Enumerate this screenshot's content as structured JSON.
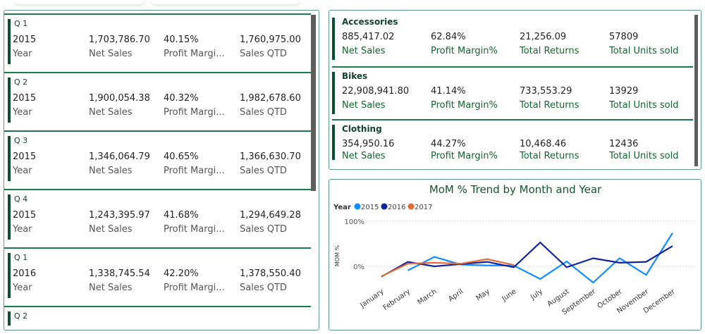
{
  "quarters": [
    {
      "title": "Q 1",
      "year": "2015",
      "net_sales": "1,703,786.70",
      "profit_margin": "40.15%",
      "sales_qtd": "1,760,975.00"
    },
    {
      "title": "Q 2",
      "year": "2015",
      "net_sales": "1,900,054.38",
      "profit_margin": "40.32%",
      "sales_qtd": "1,982,678.60"
    },
    {
      "title": "Q 3",
      "year": "2015",
      "net_sales": "1,346,064.79",
      "profit_margin": "40.65%",
      "sales_qtd": "1,366,630.70"
    },
    {
      "title": "Q 4",
      "year": "2015",
      "net_sales": "1,243,395.97",
      "profit_margin": "41.68%",
      "sales_qtd": "1,294,649.28"
    },
    {
      "title": "Q 1",
      "year": "2016",
      "net_sales": "1,338,745.54",
      "profit_margin": "42.20%",
      "sales_qtd": "1,378,550.40"
    },
    {
      "title": "Q 2"
    }
  ],
  "quarter_labels": {
    "year": "Year",
    "net_sales": "Net Sales",
    "profit_margin": "Profit Margi...",
    "sales_qtd": "Sales QTD"
  },
  "categories": [
    {
      "title": "Accessories",
      "net_sales": "885,417.02",
      "profit_margin": "62.84%",
      "total_returns": "21,256.09",
      "units": "57809"
    },
    {
      "title": "Bikes",
      "net_sales": "22,908,941.80",
      "profit_margin": "41.14%",
      "total_returns": "733,553.29",
      "units": "13929"
    },
    {
      "title": "Clothing",
      "net_sales": "354,950.16",
      "profit_margin": "44.27%",
      "total_returns": "10,468.46",
      "units": "12436"
    }
  ],
  "category_labels": {
    "net_sales": "Net Sales",
    "profit_margin": "Profit Margin%",
    "total_returns": "Total Returns",
    "units": "Total Units sold"
  },
  "chart_data": {
    "type": "line",
    "title": "MoM % Trend by Month and Year",
    "legend_title": "Year",
    "legend_position": "top-left",
    "ylabel": "MOM %",
    "yticks": [
      "100%",
      "0%"
    ],
    "ylim": [
      -50,
      100
    ],
    "grid": true,
    "categories": [
      "January",
      "February",
      "March",
      "April",
      "May",
      "June",
      "July",
      "August",
      "September",
      "October",
      "November",
      "December"
    ],
    "series": [
      {
        "name": "2015",
        "color": "#118dff",
        "values": [
          null,
          -9,
          21,
          4,
          2,
          2,
          -28,
          11,
          -36,
          18,
          -19,
          74
        ]
      },
      {
        "name": "2016",
        "color": "#12239e",
        "values": [
          -23,
          10,
          0,
          5,
          10,
          -2,
          53,
          -2,
          18,
          8,
          10,
          45
        ]
      },
      {
        "name": "2017",
        "color": "#e66c37",
        "values": [
          -22,
          6,
          8,
          6,
          16,
          3,
          null,
          null,
          null,
          null,
          null,
          null
        ]
      }
    ]
  }
}
